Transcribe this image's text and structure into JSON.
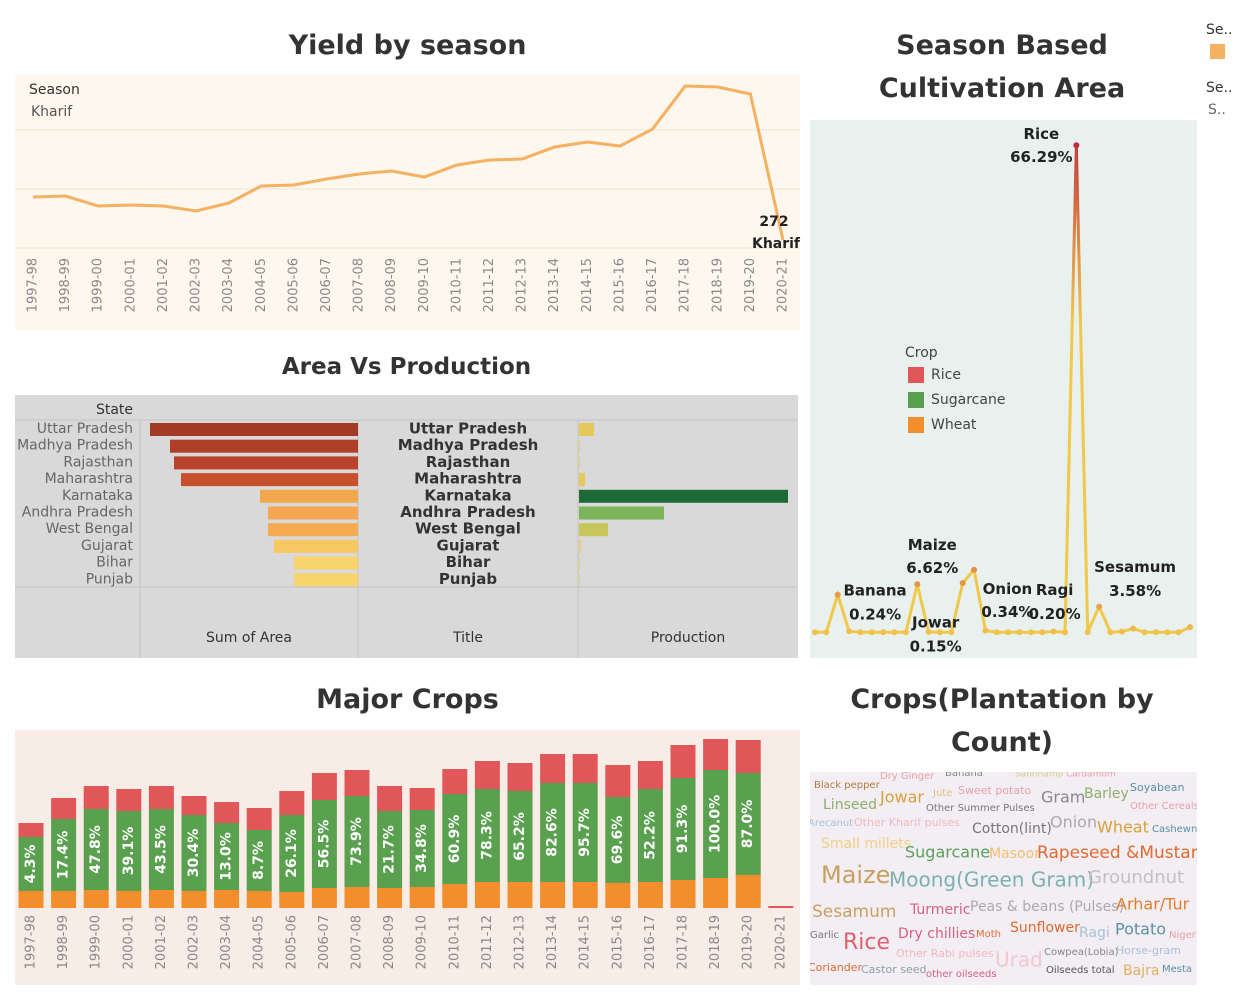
{
  "chart_data": [
    {
      "type": "line",
      "title": "Yield by season",
      "categories": [
        "1997-98",
        "1998-99",
        "1999-00",
        "2000-01",
        "2001-02",
        "2002-03",
        "2003-04",
        "2004-05",
        "2005-06",
        "2006-07",
        "2007-08",
        "2008-09",
        "2009-10",
        "2010-11",
        "2011-12",
        "2012-13",
        "2013-14",
        "2014-15",
        "2015-16",
        "2016-17",
        "2017-18",
        "2018-19",
        "2019-20",
        "2020-21"
      ],
      "legend_title": "Season",
      "series": [
        {
          "name": "Kharif",
          "color": "#f5b062",
          "values": [
            1729,
            1763,
            1424,
            1458,
            1424,
            1254,
            1525,
            2102,
            2136,
            2339,
            2508,
            2610,
            2407,
            2814,
            2983,
            3017,
            3424,
            3593,
            3458,
            4034,
            5492,
            5458,
            5220,
            272
          ]
        }
      ],
      "ylim": [
        0,
        5900
      ],
      "yticks": [
        0,
        2000,
        4000
      ],
      "grid": true
    },
    {
      "type": "point-line",
      "title": "Season Based Cultivation Area",
      "categories": [
        null,
        null,
        null,
        "Banana",
        null,
        null,
        null,
        null,
        null,
        "Maize",
        "Jowar",
        null,
        null,
        null,
        null,
        "Onion",
        null,
        null,
        null,
        null,
        null,
        "Ragi",
        null,
        "Rice",
        null,
        "Sesamum",
        null,
        null,
        null,
        null,
        null,
        null,
        null,
        null
      ],
      "values": [
        0.1,
        0.1,
        5.2,
        0.24,
        0.1,
        0.1,
        0.1,
        0.1,
        0.1,
        6.62,
        0.15,
        0.1,
        0.1,
        6.8,
        8.6,
        0.34,
        0.1,
        0.1,
        0.1,
        0.1,
        0.1,
        0.2,
        0.1,
        66.29,
        0.1,
        3.58,
        0.1,
        0.2,
        0.6,
        0.1,
        0.1,
        0.1,
        0.1,
        0.8
      ],
      "value_labels": [
        null,
        null,
        null,
        "0.24%",
        null,
        null,
        null,
        null,
        null,
        "6.62%",
        "0.15%",
        null,
        null,
        null,
        null,
        "0.34%",
        null,
        null,
        null,
        null,
        null,
        "0.20%",
        null,
        "66.29%",
        null,
        "3.58%",
        null,
        null,
        null,
        null,
        null,
        null,
        null,
        null
      ],
      "ylim": [
        0,
        70
      ],
      "color_low": "#f2c84b",
      "color_high": "#c0283c"
    },
    {
      "type": "hbar-pair",
      "title": "Area Vs Production",
      "row_header": "State",
      "column_headers": [
        "Sum of Area",
        "Title",
        "Production"
      ],
      "categories": [
        "Uttar Pradesh",
        "Madhya Pradesh",
        "Rajasthan",
        "Maharashtra",
        "Karnataka",
        "Andhra Pradesh",
        "West Bengal",
        "Gujarat",
        "Bihar",
        "Punjab"
      ],
      "area": [
        208,
        188,
        184,
        177,
        98,
        90,
        90,
        84,
        64,
        64
      ],
      "area_colors": [
        "#a23a26",
        "#b03f28",
        "#b8432a",
        "#c9502d",
        "#f4a84d",
        "#f5a650",
        "#f6aa52",
        "#f7c860",
        "#f8d46a",
        "#f8d46a"
      ],
      "production": [
        15,
        1,
        1,
        6,
        209,
        85,
        29,
        2,
        1,
        1
      ],
      "production_colors": [
        "#e4c95a",
        "#e8d070",
        "#e8d070",
        "#e4c95a",
        "#1d6a37",
        "#7db55d",
        "#c7c65b",
        "#e8d070",
        "#e8d070",
        "#e8d070"
      ],
      "xlim": [
        0,
        210
      ]
    },
    {
      "type": "stacked-bar",
      "title": "Major Crops",
      "legend_title": "Crop",
      "categories": [
        "1997-98",
        "1998-99",
        "1999-00",
        "2000-01",
        "2001-02",
        "2002-03",
        "2003-04",
        "2004-05",
        "2005-06",
        "2006-07",
        "2007-08",
        "2008-09",
        "2009-10",
        "2010-11",
        "2011-12",
        "2012-13",
        "2013-14",
        "2014-15",
        "2015-16",
        "2016-17",
        "2017-18",
        "2018-19",
        "2019-20",
        "2020-21"
      ],
      "series": [
        {
          "name": "Wheat",
          "color": "#f28e2b",
          "values": [
            17,
            17,
            18,
            17,
            18,
            17,
            18,
            17,
            16,
            20,
            21,
            20,
            21,
            24,
            26,
            26,
            26,
            26,
            25,
            26,
            28,
            30,
            33,
            0
          ]
        },
        {
          "name": "Sugarcane",
          "color": "#59a14f",
          "values": [
            54,
            72,
            81,
            80,
            81,
            76,
            67,
            61,
            77,
            88,
            91,
            77,
            77,
            90,
            93,
            91,
            99,
            99,
            86,
            93,
            102,
            108,
            102,
            0
          ]
        },
        {
          "name": "Rice",
          "color": "#e15759",
          "values": [
            14,
            21,
            23,
            22,
            23,
            19,
            21,
            22,
            24,
            27,
            26,
            25,
            22,
            25,
            28,
            28,
            29,
            29,
            32,
            28,
            33,
            31,
            33,
            2
          ]
        }
      ],
      "annotations": [
        "4.3%",
        "17.4%",
        "47.8%",
        "39.1%",
        "43.5%",
        "30.4%",
        "13.0%",
        "8.7%",
        "26.1%",
        "56.5%",
        "73.9%",
        "21.7%",
        "34.8%",
        "60.9%",
        "78.3%",
        "65.2%",
        "82.6%",
        "95.7%",
        "69.6%",
        "52.2%",
        "91.3%",
        "100.0%",
        "87.0%",
        null
      ],
      "ylim": [
        0,
        176
      ]
    },
    {
      "type": "wordcloud",
      "title": "Crops(Plantation by Count)",
      "words": [
        "Black pepper",
        "Dry Ginger",
        "Banana",
        "Sannhamp",
        "Cardamom",
        "Soyabean",
        "Linseed",
        "Jowar",
        "Jute",
        "Sweet potato",
        "Gram",
        "Barley",
        "Other Summer Pulses",
        "Other Cereals",
        "Arecanut",
        "Other Kharif pulses",
        "Cotton(lint)",
        "Onion",
        "Wheat",
        "Cashewnut",
        "Small millets",
        "Sugarcane",
        "Masoor",
        "Rapeseed &Mustard",
        "Maize",
        "Moong(Green Gram)",
        "Groundnut",
        "Sesamum",
        "Turmeric",
        "Peas & beans (Pulses)",
        "Arhar/Tur",
        "Garlic",
        "Rice",
        "Dry chillies",
        "Moth",
        "Sunflower",
        "Ragi",
        "Potato",
        "Niger",
        "Other Rabi pulses",
        "Urad",
        "Cowpea(Lobia)",
        "Horse-gram",
        "Coriander",
        "Castor seed",
        "other oilseeds",
        "Oilseeds total",
        "Bajra",
        "Mesta"
      ]
    }
  ],
  "side_legend": {
    "title": "Se..",
    "color": "#f5b062",
    "items": [
      "Se..",
      "S.."
    ]
  }
}
